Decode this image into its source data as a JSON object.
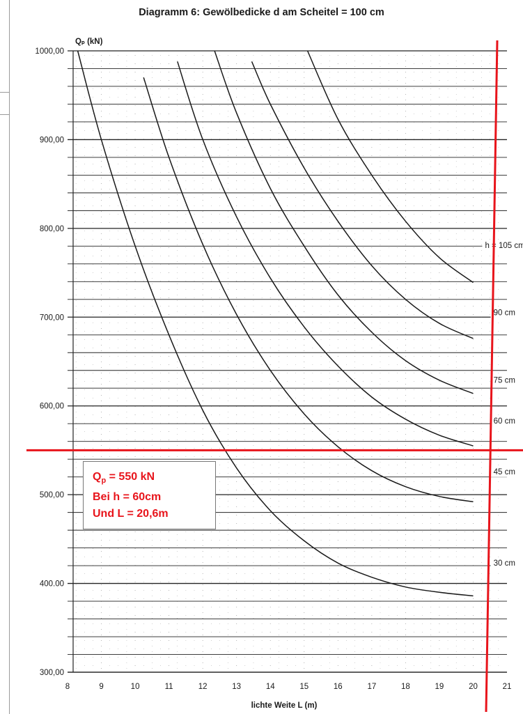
{
  "page": {
    "title": "Diagramm 6: Gewölbedicke d am Scheitel = 100 cm"
  },
  "chart_data": {
    "type": "line",
    "title": "Diagramm 6: Gewölbedicke d am Scheitel = 100 cm",
    "ylabel": "Qₚ (kN)",
    "xlabel": "lichte Weite L (m)",
    "xlim": [
      8,
      21
    ],
    "ylim": [
      300,
      1000
    ],
    "x_ticks": [
      "8",
      "9",
      "10",
      "11",
      "12",
      "13",
      "14",
      "15",
      "16",
      "17",
      "18",
      "19",
      "20",
      "21"
    ],
    "y_tick_labels": [
      {
        "value": 1000,
        "label": "1000,00"
      },
      {
        "value": 900,
        "label": "900,00"
      },
      {
        "value": 800,
        "label": "800,00"
      },
      {
        "value": 700,
        "label": "700,00"
      },
      {
        "value": 600,
        "label": "600,00"
      },
      {
        "value": 500,
        "label": "500,00"
      },
      {
        "value": 400,
        "label": "400.00"
      },
      {
        "value": 300,
        "label": "300,00"
      }
    ],
    "grid_y_step": 20,
    "series": [
      {
        "name": "30 cm",
        "label_at": [
          20.6,
          420
        ],
        "points": [
          [
            8.3,
            1000
          ],
          [
            9,
            900
          ],
          [
            10,
            780
          ],
          [
            11,
            680
          ],
          [
            12,
            595
          ],
          [
            13,
            530
          ],
          [
            14,
            482
          ],
          [
            15,
            448
          ],
          [
            16,
            423
          ],
          [
            17,
            407
          ],
          [
            18,
            396
          ],
          [
            19,
            390
          ],
          [
            20,
            386
          ]
        ]
      },
      {
        "name": "45 cm",
        "label_at": [
          20.6,
          523
        ],
        "points": [
          [
            10.25,
            970
          ],
          [
            11,
            880
          ],
          [
            12,
            782
          ],
          [
            13,
            703
          ],
          [
            14,
            640
          ],
          [
            15,
            591
          ],
          [
            16,
            554
          ],
          [
            17,
            527
          ],
          [
            18,
            509
          ],
          [
            19,
            498
          ],
          [
            20,
            492
          ]
        ]
      },
      {
        "name": "60 cm",
        "label_at": [
          20.6,
          580
        ],
        "points": [
          [
            11.25,
            988
          ],
          [
            12,
            900
          ],
          [
            13,
            813
          ],
          [
            14,
            744
          ],
          [
            15,
            689
          ],
          [
            16,
            645
          ],
          [
            17,
            610
          ],
          [
            18,
            585
          ],
          [
            19,
            567
          ],
          [
            20,
            555
          ]
        ]
      },
      {
        "name": "75 cm",
        "label_at": [
          20.6,
          626
        ],
        "points": [
          [
            12.35,
            1000
          ],
          [
            13,
            930
          ],
          [
            14,
            845
          ],
          [
            15,
            780
          ],
          [
            16,
            725
          ],
          [
            17,
            683
          ],
          [
            18,
            651
          ],
          [
            19,
            629
          ],
          [
            20,
            614
          ]
        ]
      },
      {
        "name": "90 cm",
        "label_at": [
          20.6,
          702
        ],
        "points": [
          [
            13.45,
            988
          ],
          [
            14,
            940
          ],
          [
            15,
            868
          ],
          [
            16,
            808
          ],
          [
            17,
            758
          ],
          [
            18,
            720
          ],
          [
            19,
            693
          ],
          [
            20,
            676
          ]
        ]
      },
      {
        "name": "h = 105 cm",
        "label_at": [
          20.35,
          778
        ],
        "points": [
          [
            15.1,
            1000
          ],
          [
            16,
            923
          ],
          [
            17,
            860
          ],
          [
            18,
            808
          ],
          [
            19,
            767
          ],
          [
            20,
            739
          ]
        ]
      }
    ],
    "annotations": {
      "reference_lines": {
        "y": 550,
        "x": 20.6,
        "color": "#e8141b"
      },
      "result_box": {
        "line1_prefix": "Q",
        "line1_sub": "p",
        "line1_suffix": " = 550 kN",
        "line2": "Bei h = 60cm",
        "line3": "Und L = 20,6m",
        "color": "#e8141b"
      }
    },
    "grid": true,
    "legend": "inline-right"
  }
}
